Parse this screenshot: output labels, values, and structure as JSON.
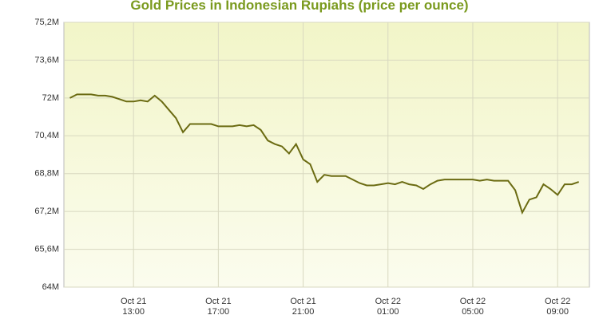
{
  "chart_data": {
    "type": "line",
    "title": "Gold Prices in Indonesian Rupiahs (price per ounce)",
    "color": "#6b6b12",
    "grid": true,
    "x": [
      "Oct 21 10:00",
      "Oct 21 10:20",
      "Oct 21 10:40",
      "Oct 21 11:00",
      "Oct 21 11:20",
      "Oct 21 11:40",
      "Oct 21 12:00",
      "Oct 21 12:20",
      "Oct 21 12:40",
      "Oct 21 13:00",
      "Oct 21 13:20",
      "Oct 21 13:40",
      "Oct 21 14:00",
      "Oct 21 14:20",
      "Oct 21 14:40",
      "Oct 21 15:00",
      "Oct 21 15:20",
      "Oct 21 15:40",
      "Oct 21 16:00",
      "Oct 21 16:20",
      "Oct 21 16:40",
      "Oct 21 17:00",
      "Oct 21 17:20",
      "Oct 21 17:40",
      "Oct 21 18:00",
      "Oct 21 18:20",
      "Oct 21 18:40",
      "Oct 21 19:00",
      "Oct 21 19:20",
      "Oct 21 19:40",
      "Oct 21 20:00",
      "Oct 21 20:20",
      "Oct 21 20:40",
      "Oct 21 21:00",
      "Oct 21 21:20",
      "Oct 21 21:40",
      "Oct 21 22:00",
      "Oct 21 22:20",
      "Oct 21 22:40",
      "Oct 21 23:00",
      "Oct 21 23:20",
      "Oct 21 23:40",
      "Oct 22 00:00",
      "Oct 22 00:20",
      "Oct 22 00:40",
      "Oct 22 01:00",
      "Oct 22 01:20",
      "Oct 22 01:40",
      "Oct 22 02:00",
      "Oct 22 02:20",
      "Oct 22 02:40",
      "Oct 22 03:00",
      "Oct 22 03:20",
      "Oct 22 03:40",
      "Oct 22 04:00",
      "Oct 22 04:20",
      "Oct 22 04:40",
      "Oct 22 05:00",
      "Oct 22 05:20",
      "Oct 22 05:40",
      "Oct 22 06:00",
      "Oct 22 06:20",
      "Oct 22 06:40",
      "Oct 22 07:00",
      "Oct 22 07:20",
      "Oct 22 07:40",
      "Oct 22 08:00",
      "Oct 22 08:20",
      "Oct 22 08:40",
      "Oct 22 09:00",
      "Oct 22 09:20",
      "Oct 22 09:40",
      "Oct 22 10:00"
    ],
    "values": [
      72.0,
      72.15,
      72.15,
      72.15,
      72.1,
      72.1,
      72.05,
      71.95,
      71.85,
      71.85,
      71.9,
      71.85,
      72.1,
      71.85,
      71.5,
      71.15,
      70.55,
      70.9,
      70.9,
      70.9,
      70.9,
      70.8,
      70.8,
      70.8,
      70.85,
      70.8,
      70.85,
      70.65,
      70.2,
      70.05,
      69.95,
      69.65,
      70.05,
      69.4,
      69.2,
      68.45,
      68.75,
      68.7,
      68.7,
      68.7,
      68.55,
      68.4,
      68.3,
      68.3,
      68.35,
      68.4,
      68.35,
      68.45,
      68.35,
      68.3,
      68.15,
      68.35,
      68.5,
      68.55,
      68.55,
      68.55,
      68.55,
      68.55,
      68.5,
      68.55,
      68.5,
      68.5,
      68.5,
      68.1,
      67.15,
      67.7,
      67.8,
      68.35,
      68.15,
      67.9,
      68.35,
      68.35,
      68.45
    ],
    "xlim": [
      "Oct 21 09:43",
      "Oct 22 10:30"
    ],
    "xticks": [
      {
        "value": "Oct 21 13:00",
        "label": "Oct 21\n13:00"
      },
      {
        "value": "Oct 21 17:00",
        "label": "Oct 21\n17:00"
      },
      {
        "value": "Oct 21 21:00",
        "label": "Oct 21\n21:00"
      },
      {
        "value": "Oct 22 01:00",
        "label": "Oct 22\n01:00"
      },
      {
        "value": "Oct 22 05:00",
        "label": "Oct 22\n05:00"
      },
      {
        "value": "Oct 22 09:00",
        "label": "Oct 22\n09:00"
      }
    ],
    "ylim": [
      64,
      75.2
    ],
    "yticks": [
      {
        "value": 64,
        "label": "64M"
      },
      {
        "value": 65.6,
        "label": "65,6M"
      },
      {
        "value": 67.2,
        "label": "67,2M"
      },
      {
        "value": 68.8,
        "label": "68,8M"
      },
      {
        "value": 70.4,
        "label": "70,4M"
      },
      {
        "value": 72,
        "label": "72M"
      },
      {
        "value": 73.6,
        "label": "73,6M"
      },
      {
        "value": 75.2,
        "label": "75,2M"
      }
    ]
  }
}
